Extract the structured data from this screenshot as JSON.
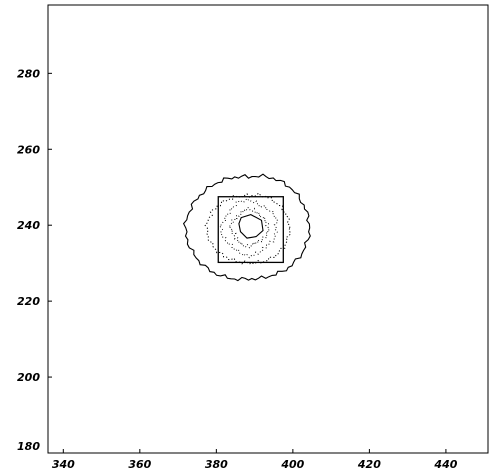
{
  "chart_data": {
    "type": "contour",
    "title": "",
    "xlabel": "",
    "ylabel": "",
    "xlim": [
      336,
      451
    ],
    "ylim": [
      180,
      298
    ],
    "x_ticks": [
      340,
      360,
      380,
      400,
      420,
      440
    ],
    "y_ticks": [
      200,
      220,
      240,
      260,
      280
    ],
    "x_tick_labels": [
      "340",
      "360",
      "380",
      "400",
      "420",
      "440"
    ],
    "y_tick_labels": [
      "200",
      "220",
      "240",
      "260",
      "280"
    ],
    "grid": false,
    "box": {
      "x0": 380.5,
      "x1": 397.5,
      "y0": 230.2,
      "y1": 247.5
    },
    "contours": [
      {
        "level": "outer",
        "style": "solid",
        "center": [
          388.4,
          239.3
        ],
        "radii": [
          17,
          4.4,
          4.7,
          4.5,
          3.0,
          2.9,
          3.4,
          3.5,
          5.0,
          3.3,
          4.3,
          2.5,
          4.4,
          4.1,
          4.7,
          1.9
        ],
        "angles_deg": [
          0,
          25,
          45,
          70,
          90,
          115,
          135,
          160,
          180,
          205,
          225,
          250,
          270,
          295,
          315,
          340
        ]
      },
      {
        "level": "middle",
        "style": "dotted",
        "center": [
          388.6,
          239.3
        ],
        "radii": [
          10.6,
          10.2,
          9.6,
          9.2,
          8.4,
          8.8,
          9.6,
          10.6,
          11.2,
          10.8,
          10.0,
          9.4,
          9.2,
          9.6,
          10.0,
          10.4
        ]
      },
      {
        "level": "inner",
        "style": "solid",
        "points": [
          [
            386.5,
            242.0
          ],
          [
            389.0,
            242.8
          ],
          [
            391.8,
            241.3
          ],
          [
            392.2,
            238.6
          ],
          [
            390.4,
            237.0
          ],
          [
            388.0,
            236.6
          ],
          [
            386.3,
            238.3
          ],
          [
            385.9,
            240.4
          ]
        ]
      }
    ]
  }
}
